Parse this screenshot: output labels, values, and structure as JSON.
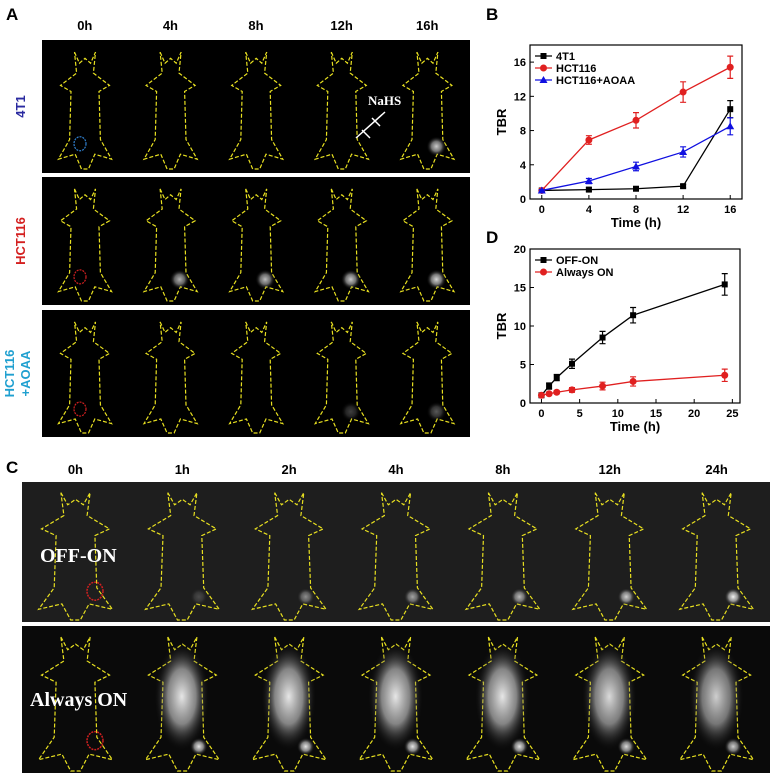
{
  "panels": {
    "a": "A",
    "b": "B",
    "c": "C",
    "d": "D"
  },
  "panel_a": {
    "times": [
      "0h",
      "4h",
      "8h",
      "12h",
      "16h"
    ],
    "rows": [
      {
        "label": "4T1",
        "color": "#2a2aa0"
      },
      {
        "label": "HCT116",
        "color": "#d42020"
      },
      {
        "label": "HCT116",
        "label2": "+AOAA",
        "color": "#20a0d0"
      }
    ],
    "annotation": "NaHS",
    "glow": [
      [
        0,
        0,
        0,
        0,
        0.8
      ],
      [
        0,
        0.7,
        0.75,
        0.8,
        0.85
      ],
      [
        0,
        0,
        0,
        0.25,
        0.35
      ]
    ]
  },
  "panel_c": {
    "times": [
      "0h",
      "1h",
      "2h",
      "4h",
      "8h",
      "12h",
      "24h"
    ],
    "rows": [
      {
        "label": "OFF-ON"
      },
      {
        "label": "Always ON"
      }
    ],
    "glow": [
      [
        0,
        0.2,
        0.5,
        0.6,
        0.7,
        0.8,
        0.95
      ],
      [
        0,
        0.9,
        0.9,
        0.9,
        0.9,
        0.85,
        0.8
      ]
    ]
  },
  "chart_data": [
    {
      "type": "line",
      "panel": "B",
      "xlabel": "Time (h)",
      "ylabel": "TBR",
      "xlim": [
        -1,
        17
      ],
      "ylim": [
        0,
        18
      ],
      "xticks": [
        0,
        4,
        8,
        12,
        16
      ],
      "yticks": [
        0,
        4,
        8,
        12,
        16
      ],
      "legend": "top-left",
      "x": [
        0,
        4,
        8,
        12,
        16
      ],
      "series": [
        {
          "name": "4T1",
          "color": "#000000",
          "marker": "square",
          "values": [
            1.0,
            1.1,
            1.2,
            1.5,
            10.5
          ],
          "errors": [
            0.1,
            0.2,
            0.2,
            0.2,
            1.0
          ]
        },
        {
          "name": "HCT116",
          "color": "#e02020",
          "marker": "circle",
          "values": [
            1.0,
            6.9,
            9.2,
            12.5,
            15.4
          ],
          "errors": [
            0.1,
            0.5,
            0.9,
            1.2,
            1.3
          ]
        },
        {
          "name": "HCT116+AOAA",
          "color": "#1010e0",
          "marker": "triangle",
          "values": [
            1.0,
            2.1,
            3.8,
            5.5,
            8.5
          ],
          "errors": [
            0.1,
            0.3,
            0.5,
            0.6,
            1.0
          ]
        }
      ]
    },
    {
      "type": "line",
      "panel": "D",
      "xlabel": "Time (h)",
      "ylabel": "TBR",
      "xlim": [
        -1.5,
        26
      ],
      "ylim": [
        0,
        20
      ],
      "xticks": [
        0,
        5,
        10,
        15,
        20,
        25
      ],
      "yticks": [
        0,
        5,
        10,
        15,
        20
      ],
      "legend": "top-left",
      "x": [
        0,
        1,
        2,
        4,
        8,
        12,
        24
      ],
      "series": [
        {
          "name": "OFF-ON",
          "color": "#000000",
          "marker": "square",
          "values": [
            1.0,
            2.2,
            3.3,
            5.1,
            8.5,
            11.4,
            15.4
          ],
          "errors": [
            0.2,
            0.4,
            0.4,
            0.6,
            0.8,
            1.0,
            1.4
          ]
        },
        {
          "name": "Always ON",
          "color": "#e02020",
          "marker": "circle",
          "values": [
            1.0,
            1.2,
            1.4,
            1.7,
            2.2,
            2.8,
            3.6
          ],
          "errors": [
            0.1,
            0.2,
            0.2,
            0.3,
            0.5,
            0.6,
            0.8
          ]
        }
      ]
    }
  ]
}
